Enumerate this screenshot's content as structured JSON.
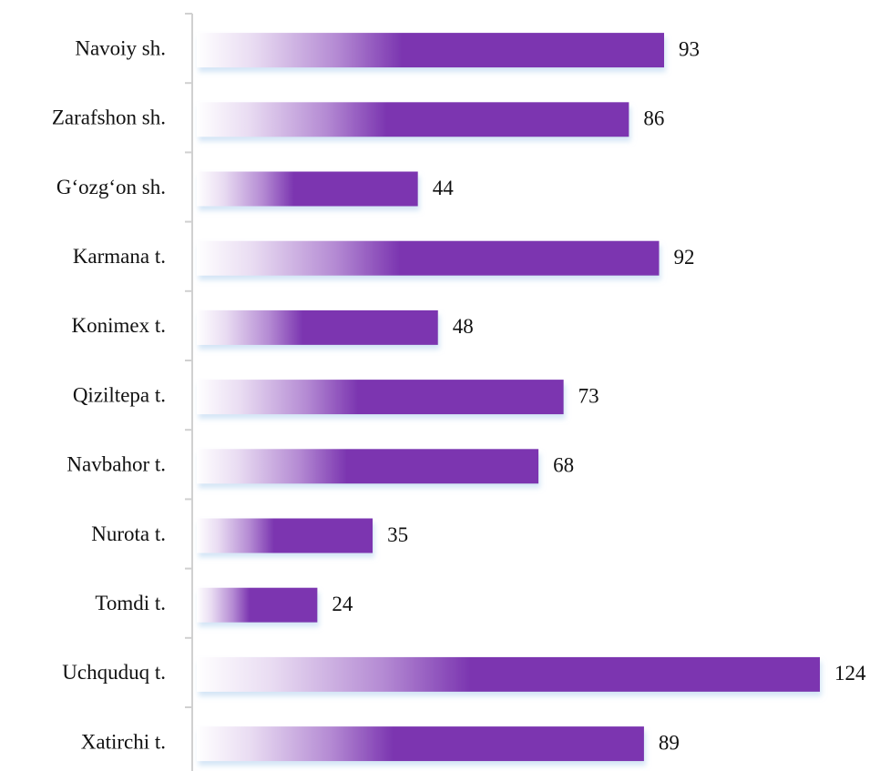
{
  "chart_data": {
    "type": "hbar",
    "categories": [
      "Navoiy sh.",
      "Zarafshon sh.",
      "G‘ozg‘on sh.",
      "Karmana t.",
      "Konimex t.",
      "Qiziltepa t.",
      "Navbahor t.",
      "Nurota t.",
      "Tomdi t.",
      "Uchquduq t.",
      "Xatirchi t."
    ],
    "values": [
      93,
      86,
      44,
      92,
      48,
      73,
      68,
      35,
      24,
      124,
      89
    ],
    "color": "#7b35b0"
  }
}
